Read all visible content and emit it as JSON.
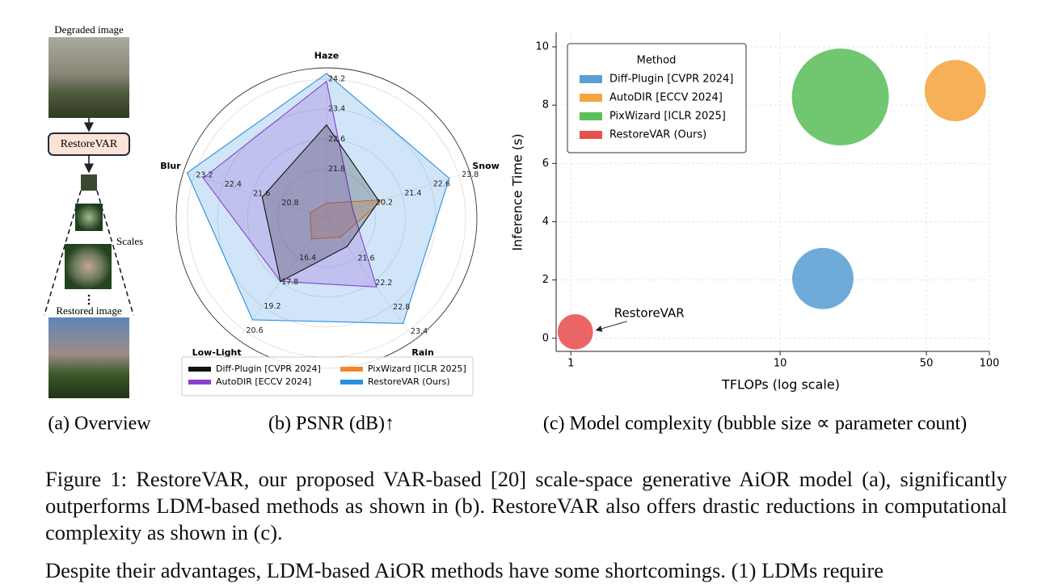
{
  "overview": {
    "degraded_label": "Degraded image",
    "model_label": "RestoreVAR",
    "scales_label": "Scales",
    "restored_label": "Restored image"
  },
  "chart_data": [
    {
      "type": "radar",
      "axes": [
        {
          "name": "Haze",
          "lim": [
            20.5,
            24.5
          ],
          "ticks": [
            21.8,
            22.6,
            23.4,
            24.2
          ]
        },
        {
          "name": "Snow",
          "lim": [
            18.2,
            24.2
          ],
          "ticks": [
            20.2,
            21.4,
            22.6,
            23.8
          ]
        },
        {
          "name": "Rain",
          "lim": [
            20.6,
            23.6
          ],
          "ticks": [
            21.6,
            22.2,
            22.8,
            23.4
          ]
        },
        {
          "name": "Low-Light",
          "lim": [
            14.1,
            21.1
          ],
          "ticks": [
            16.4,
            17.8,
            19.2,
            20.6
          ]
        },
        {
          "name": "Blur",
          "lim": [
            19.5,
            23.5
          ],
          "ticks": [
            20.8,
            21.6,
            22.4,
            23.2
          ]
        }
      ],
      "series": [
        {
          "name": "Diff-Plugin [CVPR 2024]",
          "color": "#111111",
          "values": [
            22.98,
            20.4,
            21.3,
            17.75,
            21.3
          ]
        },
        {
          "name": "AutoDIR [ECCV 2024]",
          "color": "#8a3fd1",
          "values": [
            24.14,
            19.3,
            22.3,
            17.75,
            22.95
          ]
        },
        {
          "name": "PixWizard [ICLR 2025]",
          "color": "#f0862a",
          "values": [
            20.9,
            20.55,
            21.07,
            15.3,
            19.96
          ]
        },
        {
          "name": "RestoreVAR (Ours)",
          "color": "#2a8fe0",
          "values": [
            24.35,
            23.35,
            23.2,
            19.96,
            23.4
          ]
        }
      ],
      "legend_loc": "lower center",
      "caption": "(b) PSNR (dB)↑"
    },
    {
      "type": "bubble",
      "xlabel": "TFLOPs (log scale)",
      "ylabel": "Inference Time (s)",
      "xscale": "log",
      "xlim": [
        0.85,
        100
      ],
      "ylim": [
        -0.45,
        10.5
      ],
      "xticks": [
        1,
        10,
        50,
        100
      ],
      "yticks": [
        0,
        2,
        4,
        6,
        8,
        10
      ],
      "grid": true,
      "legend_title": "Method",
      "legend_loc": "upper left",
      "series": [
        {
          "name": "Diff-Plugin [CVPR 2024]",
          "color": "#5a9fd4",
          "x": [
            16
          ],
          "values": [
            2.05
          ],
          "sizes": [
            1.44
          ]
        },
        {
          "name": "AutoDIR [ECCV 2024]",
          "color": "#f5a540",
          "x": [
            68.7
          ],
          "values": [
            8.5
          ],
          "sizes": [
            1.44
          ]
        },
        {
          "name": "PixWizard [ICLR 2025]",
          "color": "#5cbf5c",
          "x": [
            19.4
          ],
          "values": [
            8.28
          ],
          "sizes": [
            3.6
          ]
        },
        {
          "name": "RestoreVAR (Ours)",
          "color": "#e85050",
          "x": [
            1.05
          ],
          "values": [
            0.22
          ],
          "sizes": [
            0.48
          ]
        }
      ],
      "annotation": "RestoreVAR",
      "caption": "(c) Model complexity (bubble size ∝ parameter count)"
    }
  ],
  "overview_caption": "(a) Overview",
  "figure_caption": "Figure 1: RestoreVAR, our proposed VAR-based [20] scale-space generative AiOR model (a), significantly outperforms LDM-based methods as shown in (b). RestoreVAR also offers drastic reductions in computational complexity as shown in (c).",
  "body_text": "Despite their advantages, LDM-based AiOR methods have some shortcomings. (1) LDMs require"
}
